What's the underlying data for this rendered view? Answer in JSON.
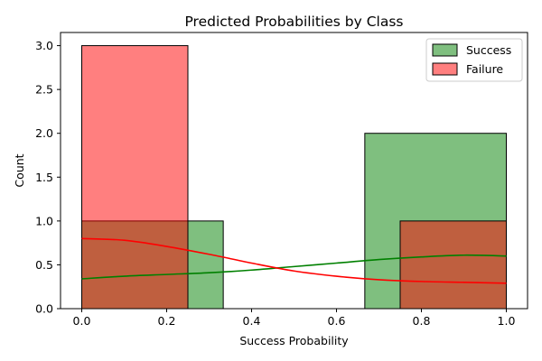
{
  "chart_data": {
    "type": "bar",
    "title": "Predicted Probabilities by Class",
    "xlabel": "Success Probability",
    "ylabel": "Count",
    "xlim": [
      -0.05,
      1.05
    ],
    "ylim": [
      0,
      3.15
    ],
    "xticks": [
      0.0,
      0.2,
      0.4,
      0.6,
      0.8,
      1.0
    ],
    "xtick_labels": [
      "0.0",
      "0.2",
      "0.4",
      "0.6",
      "0.8",
      "1.0"
    ],
    "yticks": [
      0.0,
      0.5,
      1.0,
      1.5,
      2.0,
      2.5,
      3.0
    ],
    "ytick_labels": [
      "0.0",
      "0.5",
      "1.0",
      "1.5",
      "2.0",
      "2.5",
      "3.0"
    ],
    "grid": false,
    "legend_position": "top-right",
    "series": [
      {
        "name": "Success",
        "color": "#008000",
        "bins": [
          {
            "x0": 0.0,
            "x1": 0.3333,
            "count": 1
          },
          {
            "x0": 0.3333,
            "x1": 0.6667,
            "count": 0
          },
          {
            "x0": 0.6667,
            "x1": 1.0,
            "count": 2
          }
        ],
        "kde": {
          "x": [
            0.0,
            0.1,
            0.2,
            0.3,
            0.4,
            0.5,
            0.6,
            0.7,
            0.8,
            0.9,
            1.0
          ],
          "y": [
            0.34,
            0.37,
            0.39,
            0.41,
            0.44,
            0.48,
            0.52,
            0.56,
            0.59,
            0.61,
            0.6
          ]
        }
      },
      {
        "name": "Failure",
        "color": "#ff0000",
        "bins": [
          {
            "x0": 0.0,
            "x1": 0.25,
            "count": 3
          },
          {
            "x0": 0.25,
            "x1": 0.5,
            "count": 0
          },
          {
            "x0": 0.5,
            "x1": 0.75,
            "count": 0
          },
          {
            "x0": 0.75,
            "x1": 1.0,
            "count": 1
          }
        ],
        "kde": {
          "x": [
            0.0,
            0.1,
            0.2,
            0.3,
            0.4,
            0.5,
            0.6,
            0.7,
            0.8,
            0.9,
            1.0
          ],
          "y": [
            0.8,
            0.78,
            0.71,
            0.62,
            0.52,
            0.43,
            0.37,
            0.33,
            0.31,
            0.3,
            0.29
          ]
        }
      }
    ]
  }
}
